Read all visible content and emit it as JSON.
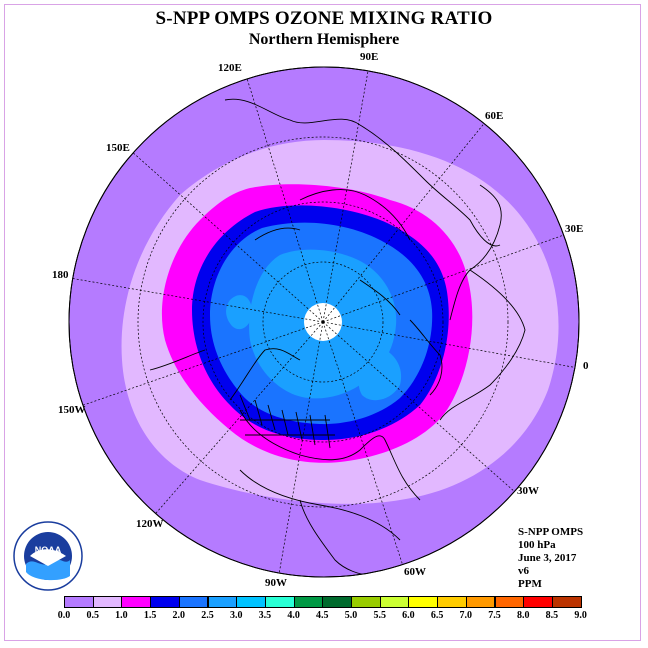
{
  "title": "S-NPP OMPS OZONE MIXING RATIO",
  "subtitle": "Northern Hemisphere",
  "longitude_labels": [
    "90E",
    "60E",
    "30E",
    "0",
    "30W",
    "60W",
    "90W",
    "120W",
    "150W",
    "180",
    "150E",
    "120E"
  ],
  "info": {
    "instrument": "S-NPP OMPS",
    "level": "100 hPa",
    "date": "June 3, 2017",
    "version": "v6",
    "units": "PPM"
  },
  "colorbar": {
    "ticks": [
      "0.0",
      "0.5",
      "1.0",
      "1.5",
      "2.0",
      "2.5",
      "3.0",
      "3.5",
      "4.0",
      "4.5",
      "5.0",
      "5.5",
      "6.0",
      "6.5",
      "7.0",
      "7.5",
      "8.0",
      "8.5",
      "9.0"
    ],
    "colors": [
      "#b57bff",
      "#e2b8ff",
      "#ff00ff",
      "#0000ee",
      "#1a74ff",
      "#1aa0ff",
      "#00c3ff",
      "#29ffd5",
      "#009944",
      "#006b2d",
      "#99cc00",
      "#ccff33",
      "#ffff00",
      "#ffcc00",
      "#ff9900",
      "#ff6600",
      "#ff0000",
      "#bb3300"
    ]
  },
  "logo_text": "NOAA",
  "colors": {
    "outer": "#b57bff",
    "ring_light": "#e2b8ff",
    "ring_magenta": "#ff00ff",
    "ring_blue": "#0000ee",
    "mid_blue": "#1a74ff",
    "light_blue": "#1aa0ff",
    "pole": "#ffffff"
  }
}
